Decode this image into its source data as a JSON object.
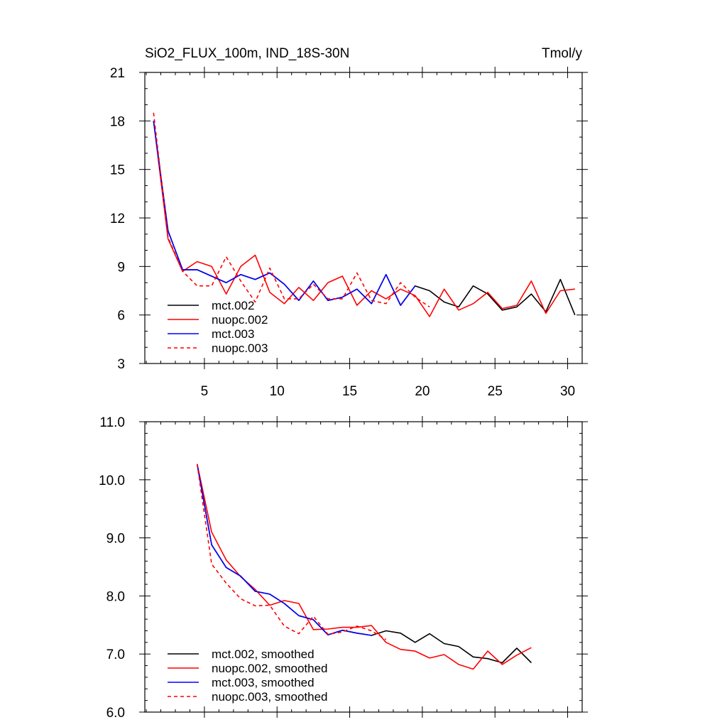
{
  "chart_data": [
    {
      "type": "line",
      "title": "SiO2_FLUX_100m, IND_18S-30N",
      "units": "Tmol/y",
      "xlabel": "",
      "ylabel": "",
      "xlim": [
        0.9,
        31.0
      ],
      "ylim": [
        3,
        21
      ],
      "xticks": [
        5,
        10,
        15,
        20,
        25,
        30
      ],
      "yticks": [
        3,
        6,
        9,
        12,
        15,
        18,
        21
      ],
      "ytick_labels": [
        "3",
        "6",
        "9",
        "12",
        "15",
        "18",
        "21"
      ],
      "xtick_labels": [
        "5",
        "10",
        "15",
        "20",
        "25",
        "30"
      ],
      "legend": "bottom-left",
      "series": [
        {
          "name": "mct.002",
          "color": "#000000",
          "dash": "solid",
          "x": [
            1.5,
            2.5,
            3.5,
            4.5,
            5.5,
            6.5,
            7.5,
            8.5,
            9.5,
            10.5,
            11.5,
            12.5,
            13.5,
            14.5,
            15.5,
            16.5,
            17.5,
            18.5,
            19.5,
            20.5,
            21.5,
            22.5,
            23.5,
            24.5,
            25.5,
            26.5,
            27.5,
            28.5,
            29.5,
            30.5
          ],
          "y": [
            18.0,
            11.2,
            8.8,
            8.8,
            8.4,
            8.0,
            8.5,
            8.2,
            8.6,
            7.9,
            6.9,
            8.1,
            6.9,
            7.1,
            7.6,
            6.7,
            8.5,
            6.6,
            7.8,
            7.5,
            6.8,
            6.5,
            7.8,
            7.3,
            6.3,
            6.5,
            7.3,
            6.2,
            8.2,
            6.0
          ]
        },
        {
          "name": "nuopc.002",
          "color": "#ff0000",
          "dash": "solid",
          "x": [
            1.5,
            2.5,
            3.5,
            4.5,
            5.5,
            6.5,
            7.5,
            8.5,
            9.5,
            10.5,
            11.5,
            12.5,
            13.5,
            14.5,
            15.5,
            16.5,
            17.5,
            18.5,
            19.5,
            20.5,
            21.5,
            22.5,
            23.5,
            24.5,
            25.5,
            26.5,
            27.5,
            28.5,
            29.5,
            30.5
          ],
          "y": [
            18.0,
            10.7,
            8.7,
            9.3,
            9.0,
            7.3,
            9.0,
            9.7,
            7.4,
            6.7,
            7.7,
            6.9,
            8.0,
            8.4,
            6.6,
            7.5,
            7.0,
            7.6,
            7.2,
            5.9,
            7.6,
            6.3,
            6.7,
            7.4,
            6.4,
            6.6,
            8.1,
            6.1,
            7.5,
            7.6
          ]
        },
        {
          "name": "mct.003",
          "color": "#0000ff",
          "dash": "solid",
          "x": [
            1.5,
            2.5,
            3.5,
            4.5,
            5.5,
            6.5,
            7.5,
            8.5,
            9.5,
            10.5,
            11.5,
            12.5,
            13.5,
            14.5,
            15.5,
            16.5,
            17.5,
            18.5,
            19.5
          ],
          "y": [
            18.0,
            11.2,
            8.8,
            8.8,
            8.4,
            8.0,
            8.5,
            8.2,
            8.6,
            7.9,
            6.9,
            8.1,
            6.9,
            7.1,
            7.6,
            6.7,
            8.5,
            6.6,
            7.8
          ]
        },
        {
          "name": "nuopc.003",
          "color": "#ff0000",
          "dash": "dashed",
          "x": [
            1.5,
            2.5,
            3.5,
            4.5,
            5.5,
            6.5,
            7.5,
            8.5,
            9.5,
            10.5,
            11.5,
            12.5,
            13.5,
            14.5,
            15.5,
            16.5,
            17.5,
            18.5,
            19.5,
            20.5
          ],
          "y": [
            18.5,
            10.8,
            8.7,
            7.8,
            7.8,
            9.6,
            8.1,
            6.8,
            8.9,
            7.0,
            7.0,
            7.9,
            7.0,
            7.0,
            8.6,
            6.9,
            6.7,
            8.0,
            7.1,
            6.5
          ]
        }
      ]
    },
    {
      "type": "line",
      "title": "",
      "xlabel": "",
      "ylabel": "",
      "xlim": [
        0.9,
        31.0
      ],
      "ylim": [
        6.0,
        11.0
      ],
      "xticks": [
        5,
        10,
        15,
        20,
        25,
        30
      ],
      "yticks": [
        6.0,
        7.0,
        8.0,
        9.0,
        10.0,
        11.0
      ],
      "ytick_labels": [
        "6.0",
        "7.0",
        "8.0",
        "9.0",
        "10.0",
        "11.0"
      ],
      "legend": "bottom-left",
      "series": [
        {
          "name": "mct.002, smoothed",
          "color": "#000000",
          "dash": "solid",
          "x": [
            4.5,
            5.5,
            6.5,
            7.5,
            8.5,
            9.5,
            10.5,
            11.5,
            12.5,
            13.5,
            14.5,
            15.5,
            16.5,
            17.5,
            18.5,
            19.5,
            20.5,
            21.5,
            22.5,
            23.5,
            24.5,
            25.5,
            26.5,
            27.5
          ],
          "y": [
            10.27,
            8.88,
            8.49,
            8.34,
            8.08,
            8.03,
            7.87,
            7.66,
            7.59,
            7.33,
            7.41,
            7.36,
            7.32,
            7.4,
            7.36,
            7.2,
            7.35,
            7.18,
            7.13,
            6.95,
            6.92,
            6.85,
            7.1,
            6.85
          ]
        },
        {
          "name": "nuopc.002, smoothed",
          "color": "#ff0000",
          "dash": "solid",
          "x": [
            4.5,
            5.5,
            6.5,
            7.5,
            8.5,
            9.5,
            10.5,
            11.5,
            12.5,
            13.5,
            14.5,
            15.5,
            16.5,
            17.5,
            18.5,
            19.5,
            20.5,
            21.5,
            22.5,
            23.5,
            24.5,
            25.5,
            26.5,
            27.5
          ],
          "y": [
            10.27,
            9.1,
            8.62,
            8.33,
            8.11,
            7.84,
            7.92,
            7.87,
            7.42,
            7.43,
            7.46,
            7.46,
            7.49,
            7.2,
            7.08,
            7.05,
            6.93,
            6.99,
            6.82,
            6.74,
            7.05,
            6.82,
            6.98,
            7.11
          ]
        },
        {
          "name": "mct.003, smoothed",
          "color": "#0000ff",
          "dash": "solid",
          "x": [
            4.5,
            5.5,
            6.5,
            7.5,
            8.5,
            9.5,
            10.5,
            11.5,
            12.5,
            13.5,
            14.5,
            15.5,
            16.5
          ],
          "y": [
            10.27,
            8.88,
            8.49,
            8.34,
            8.08,
            8.03,
            7.87,
            7.66,
            7.59,
            7.33,
            7.41,
            7.36,
            7.32
          ]
        },
        {
          "name": "nuopc.003, smoothed",
          "color": "#ff0000",
          "dash": "dashed",
          "x": [
            4.5,
            5.5,
            6.5,
            7.5,
            8.5,
            9.5,
            10.5,
            11.5,
            12.5,
            13.5,
            14.5,
            15.5,
            16.5,
            17.5
          ],
          "y": [
            10.27,
            8.55,
            8.22,
            7.95,
            7.83,
            7.84,
            7.48,
            7.35,
            7.65,
            7.34,
            7.38,
            7.48,
            7.4,
            7.25
          ]
        }
      ]
    }
  ]
}
